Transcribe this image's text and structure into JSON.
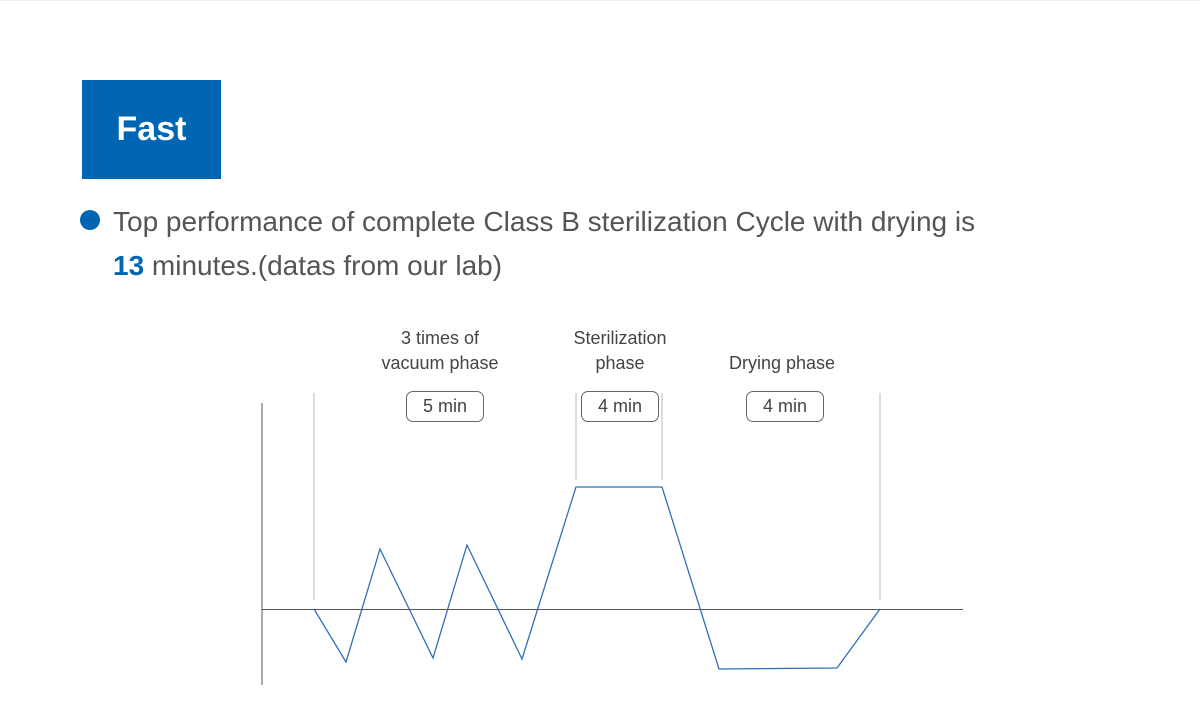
{
  "header": {
    "badge_label": "Fast"
  },
  "description": {
    "line1": "Top performance of complete Class B sterilization Cycle with drying is",
    "highlight": "13",
    "line2_rest": " minutes.(datas from our lab)"
  },
  "diagram": {
    "phases": [
      {
        "label_line1": "3 times of",
        "label_line2": "vacuum phase",
        "duration": "5 min"
      },
      {
        "label_line1": "Sterilization",
        "label_line2": "phase",
        "duration": "4 min"
      },
      {
        "label_line1": "",
        "label_line2": "Drying phase",
        "duration": "4 min"
      }
    ],
    "line_color": "#2f6fb5",
    "accent_color": "#0066b3"
  }
}
